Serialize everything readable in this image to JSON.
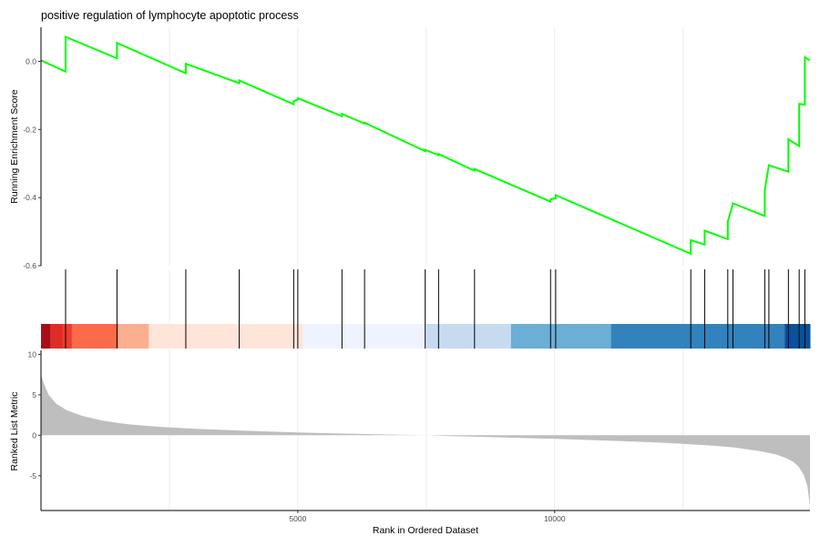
{
  "chart_data": {
    "type": "line",
    "title": "positive regulation of lymphocyte apoptotic process",
    "xlabel": "Rank in Ordered Dataset",
    "x_ticks": [
      5000,
      10000
    ],
    "xlim": [
      1,
      14970
    ],
    "panels": {
      "running_score": {
        "ylabel": "Running Enrichment Score",
        "ylim": [
          -0.6,
          0.1
        ],
        "y_ticks": [
          0.0,
          -0.2,
          -0.4,
          -0.6
        ],
        "y_tick_labels": [
          "0.0",
          "-0.2",
          "-0.4",
          "-0.6"
        ],
        "line_color": "#00ff00",
        "series": [
          {
            "x": [
              1,
              480,
              480,
              1480,
              1480,
              2820,
              2820,
              3860,
              3860,
              4920,
              4920,
              5000,
              5000,
              5860,
              5860,
              6300,
              6300,
              7480,
              7480,
              7740,
              7740,
              8440,
              8440,
              9920,
              9920,
              10020,
              10020,
              12650,
              12650,
              12920,
              12920,
              13370,
              13370,
              13470,
              13470,
              14090,
              14090,
              14170,
              14170,
              14550,
              14550,
              14760,
              14760,
              14870,
              14870,
              14970
            ],
            "y": [
              0.003,
              -0.03,
              0.072,
              0.009,
              0.054,
              -0.035,
              -0.007,
              -0.064,
              -0.056,
              -0.126,
              -0.117,
              -0.112,
              -0.108,
              -0.161,
              -0.154,
              -0.183,
              -0.18,
              -0.264,
              -0.26,
              -0.275,
              -0.272,
              -0.321,
              -0.316,
              -0.412,
              -0.405,
              -0.402,
              -0.393,
              -0.565,
              -0.525,
              -0.538,
              -0.497,
              -0.522,
              -0.47,
              -0.419,
              -0.417,
              -0.454,
              -0.378,
              -0.305,
              -0.305,
              -0.324,
              -0.229,
              -0.249,
              -0.125,
              -0.127,
              0.012,
              0.003
            ]
          }
        ]
      },
      "gene_hits": {
        "positions": [
          480,
          1480,
          2820,
          3860,
          4920,
          5000,
          5860,
          6300,
          7480,
          7740,
          8440,
          9920,
          10020,
          12650,
          12920,
          13370,
          13470,
          14090,
          14170,
          14550,
          14760,
          14870
        ]
      },
      "color_bar": {
        "segments": [
          {
            "from": 1,
            "to": 180,
            "color": "#a50f15"
          },
          {
            "from": 180,
            "to": 420,
            "color": "#de2d26"
          },
          {
            "from": 420,
            "to": 600,
            "color": "#ef3b2c"
          },
          {
            "from": 600,
            "to": 1500,
            "color": "#fb6a4a"
          },
          {
            "from": 1500,
            "to": 2100,
            "color": "#fcae91"
          },
          {
            "from": 2100,
            "to": 5100,
            "color": "#fee5d9"
          },
          {
            "from": 5100,
            "to": 7500,
            "color": "#eff3ff"
          },
          {
            "from": 7500,
            "to": 9150,
            "color": "#c6dbef"
          },
          {
            "from": 9150,
            "to": 11100,
            "color": "#6baed6"
          },
          {
            "from": 11100,
            "to": 14480,
            "color": "#3182bd"
          },
          {
            "from": 14480,
            "to": 14970,
            "color": "#08519c"
          }
        ]
      },
      "ranked_metric": {
        "ylabel": "Ranked List Metric",
        "ylim": [
          -9.3,
          10.5
        ],
        "y_ticks": [
          10,
          5,
          0,
          -5
        ],
        "y_tick_labels": [
          "10",
          "5",
          "0",
          "-5"
        ],
        "fill_color": "#bebebe",
        "curve": {
          "x": [
            1,
            50,
            150,
            300,
            500,
            800,
            1200,
            1700,
            2300,
            3000,
            4000,
            5000,
            6000,
            7000,
            7500,
            8000,
            9000,
            10000,
            11000,
            12000,
            12500,
            13000,
            13500,
            14000,
            14300,
            14500,
            14650,
            14750,
            14850,
            14920,
            14970
          ],
          "y": [
            7.5,
            6.5,
            5.0,
            3.9,
            3.1,
            2.4,
            1.8,
            1.35,
            1.05,
            0.8,
            0.55,
            0.35,
            0.2,
            0.07,
            0.0,
            -0.1,
            -0.28,
            -0.45,
            -0.65,
            -0.9,
            -1.05,
            -1.25,
            -1.5,
            -1.95,
            -2.35,
            -2.8,
            -3.3,
            -3.9,
            -4.9,
            -6.3,
            -8.8
          ]
        }
      }
    }
  }
}
